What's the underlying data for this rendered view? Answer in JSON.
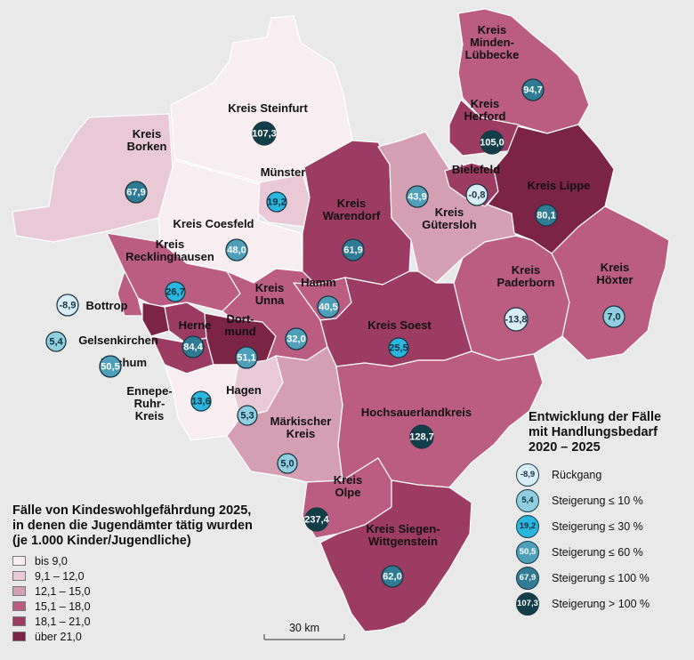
{
  "colors": {
    "c1": "#f8eef2",
    "c2": "#e9c9d5",
    "c3": "#d49fb3",
    "c4": "#bb5d80",
    "c5": "#9c3c62",
    "c6": "#7c2446",
    "t1": "#d7eef6",
    "t2": "#8fcfe0",
    "t3": "#2ab7df",
    "t4": "#4da0b8",
    "t5": "#2f7b93",
    "t6": "#123e4a"
  },
  "districts": [
    {
      "id": "steinfurt",
      "label": "Kreis Steinfurt",
      "value": "107,3",
      "cls": "c1",
      "trend": "t6"
    },
    {
      "id": "borken",
      "label": "Kreis Borken",
      "value": "67,9",
      "cls": "c2",
      "trend": "t5"
    },
    {
      "id": "muenster",
      "label": "Münster",
      "value": "19,2",
      "cls": "c2",
      "trend": "t3"
    },
    {
      "id": "coesfeld",
      "label": "Kreis Coesfeld",
      "value": "48,0",
      "cls": "c1",
      "trend": "t4"
    },
    {
      "id": "warendorf",
      "label": "Kreis Warendorf",
      "value": "61,9",
      "cls": "c5",
      "trend": "t5"
    },
    {
      "id": "guetersloh",
      "label": "Kreis Gütersloh",
      "value": "43,9",
      "cls": "c3",
      "trend": "t4"
    },
    {
      "id": "bielefeld",
      "label": "Bielefeld",
      "value": "-0,8",
      "cls": "c5",
      "trend": "t1"
    },
    {
      "id": "herford",
      "label": "Kreis Herford",
      "value": "105,0",
      "cls": "c5",
      "trend": "t6"
    },
    {
      "id": "minden",
      "label": "Kreis Minden-Lübbecke",
      "value": "94,7",
      "cls": "c4",
      "trend": "t5"
    },
    {
      "id": "lippe",
      "label": "Kreis Lippe",
      "value": "80,1",
      "cls": "c6",
      "trend": "t5"
    },
    {
      "id": "recklinghausen",
      "label": "Kreis Recklinghausen",
      "value": "26,7",
      "cls": "c4",
      "trend": "t3"
    },
    {
      "id": "bottrop",
      "label": "Bottrop",
      "value": "-8,9",
      "cls": "c4",
      "trend": "t1"
    },
    {
      "id": "gelsenkirchen",
      "label": "Gelsenkirchen",
      "value": "5,4",
      "cls": "c6",
      "trend": "t2"
    },
    {
      "id": "bochum",
      "label": "Bochum",
      "value": "50,5",
      "cls": "c5",
      "trend": "t4"
    },
    {
      "id": "herne",
      "label": "Herne",
      "value": "84,4",
      "cls": "c5",
      "trend": "t5"
    },
    {
      "id": "dortmund",
      "label": "Dortmund",
      "value": "51,1",
      "cls": "c6",
      "trend": "t4"
    },
    {
      "id": "unna",
      "label": "Kreis Unna",
      "value": "32,0",
      "cls": "c4",
      "trend": "t4"
    },
    {
      "id": "hamm",
      "label": "Hamm",
      "value": "40,5",
      "cls": "c4",
      "trend": "t4"
    },
    {
      "id": "soest",
      "label": "Kreis Soest",
      "value": "25,5",
      "cls": "c5",
      "trend": "t3"
    },
    {
      "id": "paderborn",
      "label": "Kreis Paderborn",
      "value": "-13,8",
      "cls": "c4",
      "trend": "t1"
    },
    {
      "id": "hoexter",
      "label": "Kreis Höxter",
      "value": "7,0",
      "cls": "c4",
      "trend": "t2"
    },
    {
      "id": "ennepe",
      "label": "Ennepe-Ruhr-Kreis",
      "value": "13,6",
      "cls": "c1",
      "trend": "t3"
    },
    {
      "id": "hagen",
      "label": "Hagen",
      "value": "5,3",
      "cls": "c2",
      "trend": "t2"
    },
    {
      "id": "maerkisch",
      "label": "Märkischer Kreis",
      "value": "5,0",
      "cls": "c3",
      "trend": "t2"
    },
    {
      "id": "hochsauerland",
      "label": "Hochsauerlandkreis",
      "value": "128,7",
      "cls": "c4",
      "trend": "t6"
    },
    {
      "id": "olpe",
      "label": "Kreis Olpe",
      "value": "237,4",
      "cls": "c4",
      "trend": "t6"
    },
    {
      "id": "siegen",
      "label": "Kreis Siegen-Wittgenstein",
      "value": "62,0",
      "cls": "c5",
      "trend": "t5"
    }
  ],
  "labels": {
    "steinfurt": [
      "Kreis Steinfurt"
    ],
    "borken": [
      "Kreis",
      "Borken"
    ],
    "muenster": [
      "Münster"
    ],
    "coesfeld": [
      "Kreis Coesfeld"
    ],
    "warendorf": [
      "Kreis",
      "Warendorf"
    ],
    "guetersloh": [
      "Kreis",
      "Gütersloh"
    ],
    "bielefeld": [
      "Bielefeld"
    ],
    "herford": [
      "Kreis",
      "Herford"
    ],
    "minden": [
      "Kreis",
      "Minden-",
      "Lübbecke"
    ],
    "lippe": [
      "Kreis Lippe"
    ],
    "recklinghausen": [
      "Kreis",
      "Recklinghausen"
    ],
    "bottrop": [
      "Bottrop"
    ],
    "gelsenkirchen": [
      "Gelsenkirchen"
    ],
    "bochum": [
      "Bochum"
    ],
    "herne": [
      "Herne"
    ],
    "dortmund": [
      "Dort-",
      "mund"
    ],
    "unna": [
      "Kreis",
      "Unna"
    ],
    "hamm": [
      "Hamm"
    ],
    "soest": [
      "Kreis Soest"
    ],
    "paderborn": [
      "Kreis",
      "Paderborn"
    ],
    "hoexter": [
      "Kreis",
      "Höxter"
    ],
    "ennepe": [
      "Ennepe-",
      "Ruhr-",
      "Kreis"
    ],
    "hagen": [
      "Hagen"
    ],
    "maerkisch": [
      "Märkischer",
      "Kreis"
    ],
    "hochsauerland": [
      "Hochsauerlandkreis"
    ],
    "olpe": [
      "Kreis",
      "Olpe"
    ],
    "siegen": [
      "Kreis Siegen-",
      "Wittgenstein"
    ]
  },
  "legend_left": {
    "title_lines": [
      "Fälle von Kindeswohlgefährdung 2025,",
      "in denen die Jugendämter tätig wurden",
      "(je 1.000 Kinder/Jugendliche)"
    ],
    "classes": [
      {
        "label": "bis 9,0",
        "color": "c1"
      },
      {
        "label": "9,1 – 12,0",
        "color": "c2"
      },
      {
        "label": "12,1 – 15,0",
        "color": "c3"
      },
      {
        "label": "15,1 – 18,0",
        "color": "c4"
      },
      {
        "label": "18,1 – 21,0",
        "color": "c5"
      },
      {
        "label": "über 21,0",
        "color": "c6"
      }
    ]
  },
  "legend_right": {
    "title_lines": [
      "Entwicklung der Fälle",
      "mit Handlungsbedarf",
      "2020 – 2025"
    ],
    "classes": [
      {
        "sample": "-8,9",
        "label": "Rückgang",
        "color": "t1"
      },
      {
        "sample": "5,4",
        "label": "Steigerung ≤ 10 %",
        "color": "t2"
      },
      {
        "sample": "19,2",
        "label": "Steigerung ≤ 30 %",
        "color": "t3"
      },
      {
        "sample": "50,5",
        "label": "Steigerung ≤ 60 %",
        "color": "t4"
      },
      {
        "sample": "67,9",
        "label": "Steigerung ≤ 100 %",
        "color": "t5"
      },
      {
        "sample": "107,3",
        "label": "Steigerung > 100 %",
        "color": "t6"
      }
    ]
  },
  "scale_bar": {
    "label": "30 km"
  }
}
